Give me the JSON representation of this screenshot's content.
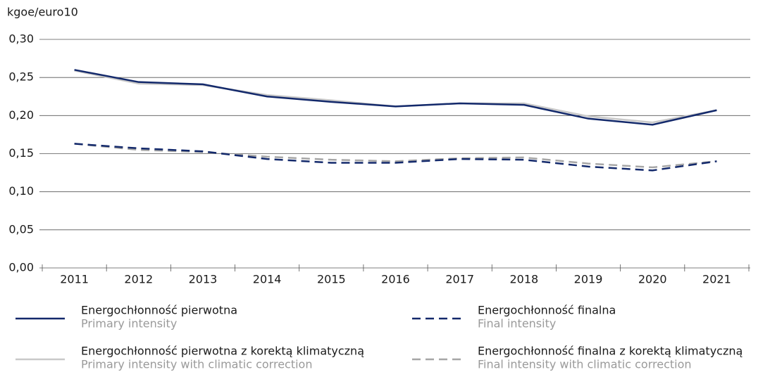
{
  "chart_data": {
    "type": "line",
    "y_axis_label": "kgoe/euro10",
    "categories": [
      "2011",
      "2012",
      "2013",
      "2014",
      "2015",
      "2016",
      "2017",
      "2018",
      "2019",
      "2020",
      "2021"
    ],
    "series": [
      {
        "name": "Energochłonność pierwotna z korektą klimatyczną",
        "name_en": "Primary intensity with climatic correction",
        "color": "#c9c9c9",
        "dashed": false,
        "values": [
          0.259,
          0.242,
          0.24,
          0.227,
          0.22,
          0.212,
          0.216,
          0.216,
          0.199,
          0.191,
          0.207
        ]
      },
      {
        "name": "Energochłonność finalna z korektą klimatyczną",
        "name_en": "Final intensity with climatic correction",
        "color": "#a6a6a6",
        "dashed": true,
        "values": [
          0.163,
          0.155,
          0.152,
          0.146,
          0.142,
          0.14,
          0.144,
          0.145,
          0.137,
          0.132,
          0.14
        ]
      },
      {
        "name": "Energochłonność pierwotna",
        "name_en": "Primary intensity",
        "color": "#13296b",
        "dashed": false,
        "values": [
          0.26,
          0.244,
          0.241,
          0.225,
          0.218,
          0.212,
          0.216,
          0.214,
          0.196,
          0.188,
          0.207
        ]
      },
      {
        "name": "Energochłonność finalna",
        "name_en": "Final intensity",
        "color": "#13296b",
        "dashed": true,
        "values": [
          0.163,
          0.157,
          0.153,
          0.143,
          0.138,
          0.138,
          0.143,
          0.142,
          0.133,
          0.128,
          0.14
        ]
      }
    ],
    "ylim": [
      0,
      0.3
    ],
    "yticks": [
      {
        "value": 0,
        "label": "0,00"
      },
      {
        "value": 0.05,
        "label": "0,05"
      },
      {
        "value": 0.1,
        "label": "0,10"
      },
      {
        "value": 0.15,
        "label": "0,15"
      },
      {
        "value": 0.2,
        "label": "0,20"
      },
      {
        "value": 0.25,
        "label": "0,25"
      },
      {
        "value": 0.3,
        "label": "0,30"
      }
    ],
    "grid": true
  }
}
